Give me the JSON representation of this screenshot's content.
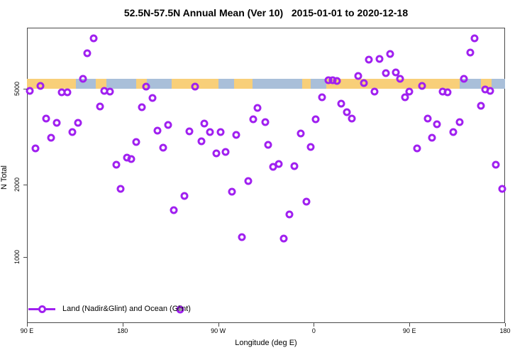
{
  "title": "52.5N-57.5N Annual Mean (Ver 10)   2015-01-01 to 2020-12-18",
  "legend": {
    "label": "Land (Nadir&Glint) and Ocean (Glint)"
  },
  "chart_data": {
    "type": "scatter",
    "title": "52.5N-57.5N Annual Mean (Ver 10)  2015-01-01 to 2020-12-18",
    "xlabel": "Longitude (deg E)",
    "ylabel": "N Total",
    "x_axis": {
      "min": 90,
      "max": 540,
      "note": "longitude continuous deg E, wraps 90E->180->90W->0->90E->180",
      "ticks": [
        {
          "v": 90,
          "label": "90 E"
        },
        {
          "v": 180,
          "label": "180"
        },
        {
          "v": 270,
          "label": "90 W"
        },
        {
          "v": 360,
          "label": "0"
        },
        {
          "v": 450,
          "label": "90 E"
        },
        {
          "v": 540,
          "label": "180"
        }
      ]
    },
    "y_axis": {
      "scale": "log",
      "min": 530,
      "max": 8900,
      "ticks": [
        {
          "v": 5000,
          "label": "5000"
        },
        {
          "v": 2000,
          "label": "2000"
        },
        {
          "v": 1000,
          "label": "1000"
        }
      ]
    },
    "surface_band": {
      "from_n": 5000,
      "to_n": 5500,
      "segments": [
        {
          "from": 90,
          "to": 136,
          "type": "land"
        },
        {
          "from": 136,
          "to": 155,
          "type": "ocean"
        },
        {
          "from": 155,
          "to": 165,
          "type": "land"
        },
        {
          "from": 165,
          "to": 193,
          "type": "ocean"
        },
        {
          "from": 193,
          "to": 203,
          "type": "land"
        },
        {
          "from": 203,
          "to": 226,
          "type": "ocean"
        },
        {
          "from": 226,
          "to": 270,
          "type": "land"
        },
        {
          "from": 270,
          "to": 285,
          "type": "ocean"
        },
        {
          "from": 285,
          "to": 302,
          "type": "land"
        },
        {
          "from": 302,
          "to": 349,
          "type": "ocean"
        },
        {
          "from": 349,
          "to": 357,
          "type": "land"
        },
        {
          "from": 357,
          "to": 372,
          "type": "ocean"
        },
        {
          "from": 372,
          "to": 497,
          "type": "land"
        },
        {
          "from": 497,
          "to": 517,
          "type": "ocean"
        },
        {
          "from": 517,
          "to": 527,
          "type": "land"
        },
        {
          "from": 527,
          "to": 540,
          "type": "ocean"
        }
      ]
    },
    "legend": {
      "label": "Land (Nadir&Glint) and Ocean (Glint)",
      "position": "bottom-left"
    },
    "colors": {
      "marker": "#a020f0",
      "land": "#f8cf79",
      "ocean": "#a9bfd9"
    },
    "points": [
      [
        93,
        4900
      ],
      [
        98,
        2830
      ],
      [
        103,
        5140
      ],
      [
        108,
        3760
      ],
      [
        113,
        3130
      ],
      [
        118,
        3610
      ],
      [
        123,
        4830
      ],
      [
        128,
        4830
      ],
      [
        133,
        3300
      ],
      [
        138,
        3610
      ],
      [
        143,
        5500
      ],
      [
        147,
        7020
      ],
      [
        153,
        8090
      ],
      [
        159,
        4220
      ],
      [
        163,
        4900
      ],
      [
        168,
        4870
      ],
      [
        174,
        2420
      ],
      [
        178,
        1920
      ],
      [
        184,
        2590
      ],
      [
        188,
        2550
      ],
      [
        193,
        3010
      ],
      [
        198,
        4190
      ],
      [
        202,
        5100
      ],
      [
        208,
        4580
      ],
      [
        213,
        3350
      ],
      [
        218,
        2850
      ],
      [
        223,
        3540
      ],
      [
        228,
        1570
      ],
      [
        234,
        605
      ],
      [
        238,
        1800
      ],
      [
        243,
        3330
      ],
      [
        248,
        5100
      ],
      [
        254,
        3030
      ],
      [
        257,
        3590
      ],
      [
        262,
        3300
      ],
      [
        268,
        2700
      ],
      [
        272,
        3300
      ],
      [
        277,
        2730
      ],
      [
        283,
        1870
      ],
      [
        287,
        3210
      ],
      [
        292,
        1210
      ],
      [
        298,
        2070
      ],
      [
        303,
        3730
      ],
      [
        307,
        4160
      ],
      [
        314,
        3630
      ],
      [
        317,
        2920
      ],
      [
        322,
        2370
      ],
      [
        327,
        2430
      ],
      [
        332,
        1190
      ],
      [
        337,
        1500
      ],
      [
        342,
        2390
      ],
      [
        348,
        3260
      ],
      [
        353,
        1700
      ],
      [
        357,
        2870
      ],
      [
        362,
        3730
      ],
      [
        368,
        4600
      ],
      [
        374,
        5420
      ],
      [
        378,
        5420
      ],
      [
        382,
        5380
      ],
      [
        386,
        4340
      ],
      [
        391,
        4000
      ],
      [
        396,
        3760
      ],
      [
        402,
        5650
      ],
      [
        407,
        5280
      ],
      [
        412,
        6610
      ],
      [
        417,
        4870
      ],
      [
        422,
        6650
      ],
      [
        428,
        5810
      ],
      [
        432,
        6970
      ],
      [
        437,
        5850
      ],
      [
        441,
        5500
      ],
      [
        446,
        4600
      ],
      [
        450,
        4870
      ],
      [
        457,
        2830
      ],
      [
        462,
        5140
      ],
      [
        467,
        3760
      ],
      [
        471,
        3130
      ],
      [
        476,
        3560
      ],
      [
        481,
        4870
      ],
      [
        486,
        4830
      ],
      [
        491,
        3300
      ],
      [
        497,
        3630
      ],
      [
        501,
        5500
      ],
      [
        507,
        7060
      ],
      [
        511,
        8090
      ],
      [
        517,
        4250
      ],
      [
        521,
        4970
      ],
      [
        526,
        4900
      ],
      [
        531,
        2420
      ],
      [
        537,
        1920
      ]
    ]
  }
}
